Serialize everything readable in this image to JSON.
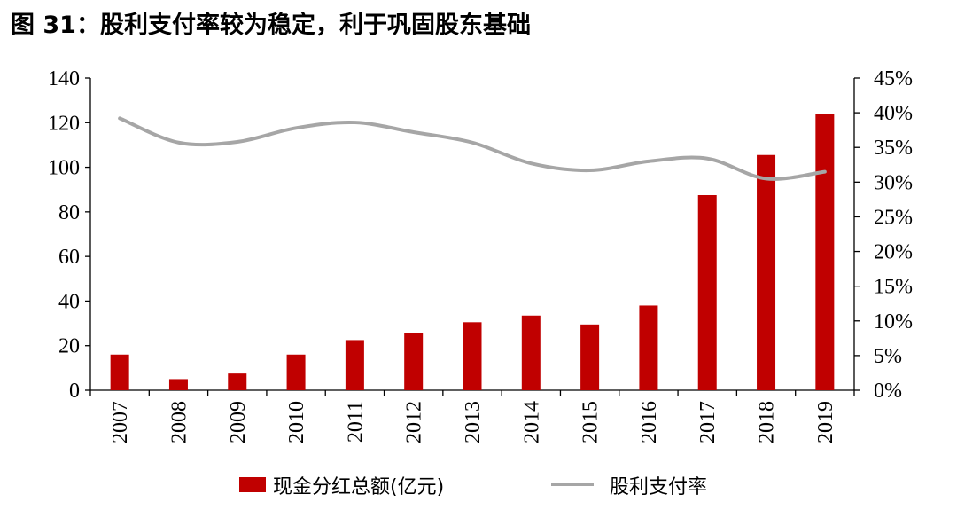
{
  "figure": {
    "title": "图 31：股利支付率较为稳定，利于巩固股东基础"
  },
  "colors": {
    "bar": "#c00000",
    "line": "#a6a6a6",
    "axis": "#000000"
  },
  "chart_data": {
    "type": "bar",
    "title": "",
    "categories": [
      "2007",
      "2008",
      "2009",
      "2010",
      "2011",
      "2012",
      "2013",
      "2014",
      "2015",
      "2016",
      "2017",
      "2018",
      "2019"
    ],
    "series": [
      {
        "name": "现金分红总额(亿元)",
        "type": "bar",
        "axis": "left",
        "values": [
          16,
          5,
          7.5,
          16,
          22.5,
          25.5,
          30.5,
          33.5,
          29.5,
          38,
          87.5,
          105.5,
          124
        ]
      },
      {
        "name": "股利支付率",
        "type": "line",
        "axis": "right",
        "values": [
          0.392,
          0.357,
          0.358,
          0.378,
          0.386,
          0.372,
          0.357,
          0.327,
          0.317,
          0.33,
          0.334,
          0.305,
          0.315
        ]
      }
    ],
    "y_left": {
      "min": 0,
      "max": 140,
      "step": 20,
      "ticks": [
        "0",
        "20",
        "40",
        "60",
        "80",
        "100",
        "120",
        "140"
      ]
    },
    "y_right": {
      "min": 0,
      "max": 0.45,
      "step": 0.05,
      "ticks": [
        "0%",
        "5%",
        "10%",
        "15%",
        "20%",
        "25%",
        "30%",
        "35%",
        "40%",
        "45%"
      ]
    },
    "grid": false,
    "legend_position": "bottom"
  }
}
